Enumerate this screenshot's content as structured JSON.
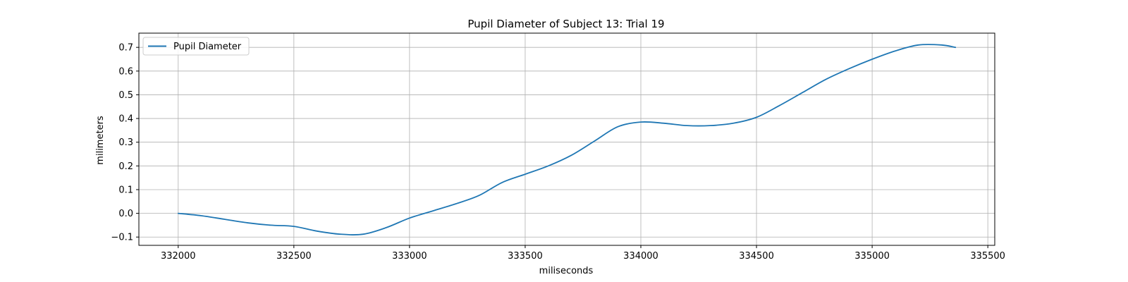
{
  "chart_data": {
    "type": "line",
    "title": "Pupil Diameter of Subject 13: Trial 19",
    "xlabel": "miliseconds",
    "ylabel": "milimeters",
    "xlim": [
      331830,
      335530
    ],
    "ylim": [
      -0.135,
      0.76
    ],
    "xticks": [
      332000,
      332500,
      333000,
      333500,
      334000,
      334500,
      335000,
      335500
    ],
    "yticks": [
      -0.1,
      0.0,
      0.1,
      0.2,
      0.3,
      0.4,
      0.5,
      0.6,
      0.7
    ],
    "xtick_labels": [
      "332000",
      "332500",
      "333000",
      "333500",
      "334000",
      "334500",
      "335000",
      "335500"
    ],
    "ytick_labels": [
      "−0.1",
      "0.0",
      "0.1",
      "0.2",
      "0.3",
      "0.4",
      "0.5",
      "0.6",
      "0.7"
    ],
    "grid": true,
    "legend": {
      "position": "top-left"
    },
    "series": [
      {
        "name": "Pupil Diameter",
        "color": "#1f77b4",
        "x": [
          332000,
          332100,
          332200,
          332300,
          332400,
          332500,
          332600,
          332700,
          332800,
          332900,
          333000,
          333100,
          333200,
          333300,
          333400,
          333500,
          333600,
          333700,
          333800,
          333900,
          334000,
          334100,
          334200,
          334300,
          334400,
          334500,
          334600,
          334700,
          334800,
          334900,
          335000,
          335100,
          335200,
          335300,
          335360
        ],
        "y": [
          0.0,
          -0.01,
          -0.025,
          -0.04,
          -0.05,
          -0.055,
          -0.075,
          -0.088,
          -0.088,
          -0.06,
          -0.02,
          0.01,
          0.04,
          0.075,
          0.13,
          0.165,
          0.2,
          0.245,
          0.305,
          0.365,
          0.385,
          0.38,
          0.37,
          0.37,
          0.38,
          0.405,
          0.455,
          0.51,
          0.565,
          0.61,
          0.65,
          0.685,
          0.71,
          0.71,
          0.7
        ]
      }
    ]
  }
}
